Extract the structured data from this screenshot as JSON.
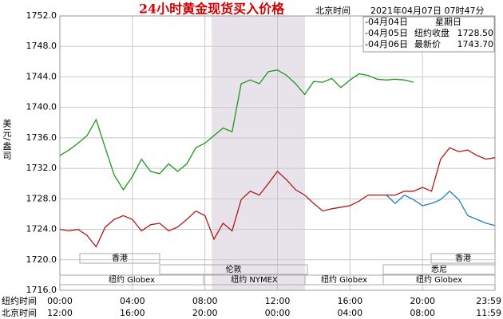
{
  "chart_data": {
    "type": "line",
    "title": "24小时黄金现货买入价格",
    "header_time_label": "北京时间",
    "header_time": "2021年04月07日 07时47分",
    "ylabel": "美元/盎司",
    "x_row_labels": [
      "纽约时间",
      "北京时间"
    ],
    "x": [
      0,
      0.5,
      1,
      1.5,
      2,
      2.5,
      3,
      3.5,
      4,
      4.5,
      5,
      5.5,
      6,
      6.5,
      7,
      7.5,
      8,
      8.5,
      9,
      9.5,
      10,
      10.5,
      11,
      11.5,
      12,
      12.5,
      13,
      13.5,
      14,
      14.5,
      15,
      15.5,
      16,
      16.5,
      17,
      17.5,
      18,
      18.5,
      19,
      19.5,
      20,
      20.5,
      21,
      21.5,
      22,
      22.5,
      23,
      23.5,
      24
    ],
    "xlim": [
      0,
      24
    ],
    "xticks": [
      {
        "value": 0,
        "label": "00:00"
      },
      {
        "value": 4,
        "label": "04:00"
      },
      {
        "value": 8,
        "label": "08:00"
      },
      {
        "value": 12,
        "label": "12:00"
      },
      {
        "value": 16,
        "label": "16:00"
      },
      {
        "value": 20,
        "label": "20:00"
      },
      {
        "value": 24,
        "label": "23:59"
      }
    ],
    "x2ticks": [
      {
        "value": 0,
        "label": "12:00"
      },
      {
        "value": 4,
        "label": "16:00"
      },
      {
        "value": 8,
        "label": "20:00"
      },
      {
        "value": 12,
        "label": "00:00"
      },
      {
        "value": 16,
        "label": "04:00"
      },
      {
        "value": 20,
        "label": "08:00"
      },
      {
        "value": 24,
        "label": "11:59"
      }
    ],
    "ylim": [
      1716,
      1752
    ],
    "yticks": [
      {
        "value": 1716,
        "label": "1716.0"
      },
      {
        "value": 1720,
        "label": "1720.0"
      },
      {
        "value": 1724,
        "label": "1724.0"
      },
      {
        "value": 1728,
        "label": "1728.0"
      },
      {
        "value": 1732,
        "label": "1732.0"
      },
      {
        "value": 1736,
        "label": "1736.0"
      },
      {
        "value": 1740,
        "label": "1740.0"
      },
      {
        "value": 1744,
        "label": "1744.0"
      },
      {
        "value": 1748,
        "label": "1748.0"
      },
      {
        "value": 1752,
        "label": "1752.0"
      }
    ],
    "grid": true,
    "sessions": [
      "香港",
      "伦敦",
      "纽约 Globex",
      "纽约 NYMEX",
      "纽约 Globex",
      "悉尼",
      "香港",
      "纽约 Globex"
    ],
    "series": [
      {
        "name": "-04月04日",
        "label": "星期日",
        "color": "#1f7fc4",
        "values": [
          null,
          null,
          null,
          null,
          null,
          null,
          null,
          null,
          null,
          null,
          null,
          null,
          null,
          null,
          null,
          null,
          null,
          null,
          null,
          null,
          null,
          null,
          null,
          null,
          null,
          null,
          null,
          null,
          null,
          null,
          null,
          null,
          null,
          null,
          null,
          null,
          1728.5,
          1727.4,
          1728.5,
          1727.9,
          1727.1,
          1727.4,
          1727.9,
          1729.0,
          1727.9,
          1725.8,
          1725.3,
          1724.8,
          1724.5
        ]
      },
      {
        "name": "-04月05日",
        "label": "纽约收盘",
        "value_label": "1728.50",
        "color": "#b01818",
        "values": [
          1724.0,
          1723.8,
          1724.0,
          1723.2,
          1721.7,
          1724.3,
          1725.3,
          1725.8,
          1725.3,
          1723.8,
          1724.6,
          1724.8,
          1723.8,
          1724.3,
          1725.3,
          1726.4,
          1725.8,
          1722.7,
          1724.8,
          1723.8,
          1727.9,
          1729.0,
          1728.5,
          1730.0,
          1731.6,
          1730.5,
          1729.2,
          1728.5,
          1727.4,
          1726.4,
          1726.7,
          1726.9,
          1727.1,
          1727.7,
          1728.5,
          1728.5,
          1728.5,
          1728.5,
          1729.0,
          1729.0,
          1729.5,
          1729.0,
          1733.2,
          1734.7,
          1734.2,
          1734.4,
          1733.7,
          1733.2,
          1733.4
        ]
      },
      {
        "name": "-04月06日",
        "label": "最新价",
        "value_label": "1743.70",
        "color": "#1a9a1a",
        "values": [
          1733.7,
          1734.4,
          1735.3,
          1736.3,
          1738.4,
          1734.7,
          1731.1,
          1729.2,
          1730.9,
          1733.2,
          1731.6,
          1731.3,
          1732.6,
          1731.6,
          1732.6,
          1734.7,
          1735.3,
          1736.3,
          1737.3,
          1736.8,
          1743.1,
          1743.6,
          1743.1,
          1744.7,
          1744.9,
          1744.2,
          1743.1,
          1741.7,
          1743.4,
          1743.3,
          1743.8,
          1742.6,
          1743.6,
          1744.4,
          1744.2,
          1743.7,
          1743.6,
          1743.7,
          1743.6,
          1743.3,
          null,
          null,
          null,
          null,
          null,
          null,
          null,
          null,
          null
        ]
      }
    ]
  }
}
